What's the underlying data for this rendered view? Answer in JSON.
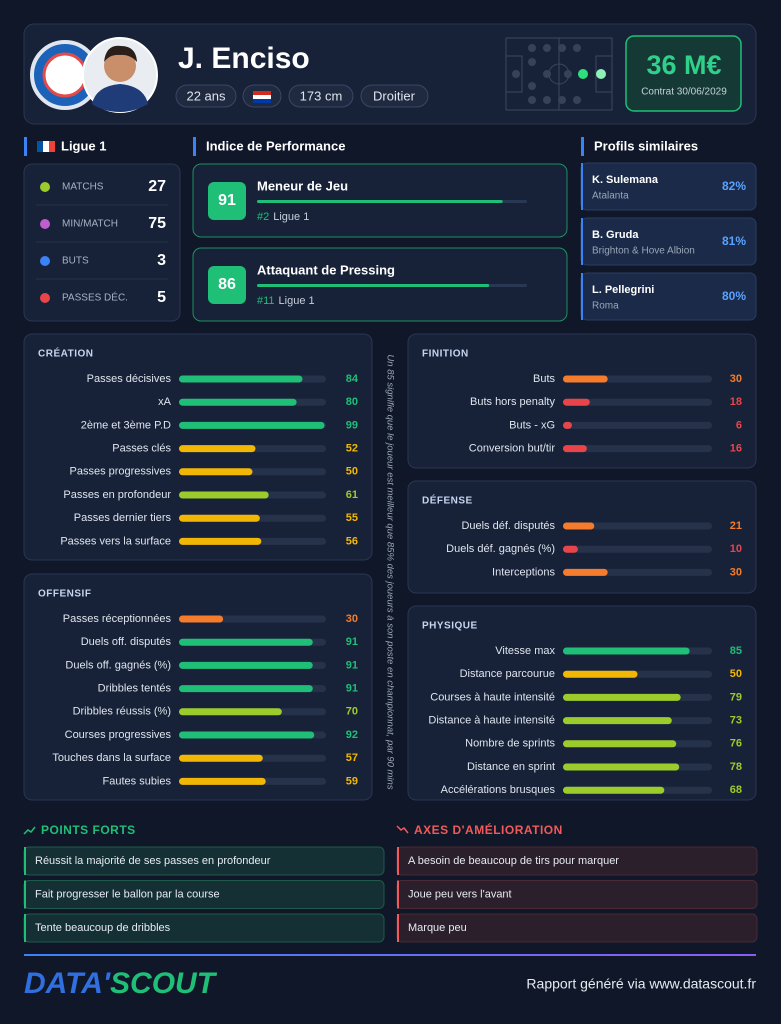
{
  "header": {
    "name": "J. Enciso",
    "age": "22 ans",
    "height": "173 cm",
    "foot": "Droitier",
    "value": "36 M€",
    "contract": "Contrat 30/06/2029"
  },
  "league": {
    "title": "Ligue 1",
    "stats": [
      {
        "label": "MATCHS",
        "value": 27
      },
      {
        "label": "MIN/MATCH",
        "value": 75
      },
      {
        "label": "BUTS",
        "value": 3
      },
      {
        "label": "PASSES DÉC.",
        "value": 5
      }
    ]
  },
  "performance": {
    "title": "Indice de Performance",
    "items": [
      {
        "score": 91,
        "role": "Meneur de Jeu",
        "rank": "#2",
        "league": "Ligue 1"
      },
      {
        "score": 86,
        "role": "Attaquant de Pressing",
        "rank": "#11",
        "league": "Ligue 1"
      }
    ]
  },
  "similar": {
    "title": "Profils similaires",
    "items": [
      {
        "name": "K. Sulemana",
        "club": "Atalanta",
        "match": "82%"
      },
      {
        "name": "B. Gruda",
        "club": "Brighton & Hove Albion",
        "match": "81%"
      },
      {
        "name": "L. Pellegrini",
        "club": "Roma",
        "match": "80%"
      }
    ]
  },
  "percentile_scale": {
    "xlim": [
      0,
      100
    ],
    "colors": [
      {
        "min": 80,
        "color": "#1fbf78"
      },
      {
        "min": 60,
        "color": "#9ccc2c"
      },
      {
        "min": 40,
        "color": "#f2b705"
      },
      {
        "min": 20,
        "color": "#f47c2c"
      },
      {
        "min": 0,
        "color": "#e8454a"
      }
    ]
  },
  "stat_sections": [
    {
      "title": "CRÉATION",
      "items": [
        {
          "label": "Passes décisives",
          "value": 84
        },
        {
          "label": "xA",
          "value": 80
        },
        {
          "label": "2ème et 3ème P.D",
          "value": 99
        },
        {
          "label": "Passes clés",
          "value": 52
        },
        {
          "label": "Passes progressives",
          "value": 50
        },
        {
          "label": "Passes en profondeur",
          "value": 61
        },
        {
          "label": "Passes dernier tiers",
          "value": 55
        },
        {
          "label": "Passes vers la surface",
          "value": 56
        }
      ]
    },
    {
      "title": "OFFENSIF",
      "items": [
        {
          "label": "Passes réceptionnées",
          "value": 30
        },
        {
          "label": "Duels off. disputés",
          "value": 91
        },
        {
          "label": "Duels off. gagnés (%)",
          "value": 91
        },
        {
          "label": "Dribbles tentés",
          "value": 91
        },
        {
          "label": "Dribbles réussis (%)",
          "value": 70
        },
        {
          "label": "Courses progressives",
          "value": 92
        },
        {
          "label": "Touches dans la surface",
          "value": 57
        },
        {
          "label": "Fautes subies",
          "value": 59
        }
      ]
    },
    {
      "title": "FINITION",
      "items": [
        {
          "label": "Buts",
          "value": 30
        },
        {
          "label": "Buts hors penalty",
          "value": 18
        },
        {
          "label": "Buts - xG",
          "value": 6
        },
        {
          "label": "Conversion but/tir",
          "value": 16
        }
      ]
    },
    {
      "title": "DÉFENSE",
      "items": [
        {
          "label": "Duels déf. disputés",
          "value": 21
        },
        {
          "label": "Duels déf. gagnés (%)",
          "value": 10
        },
        {
          "label": "Interceptions",
          "value": 30
        }
      ]
    },
    {
      "title": "PHYSIQUE",
      "items": [
        {
          "label": "Vitesse max",
          "value": 85
        },
        {
          "label": "Distance parcourue",
          "value": 50
        },
        {
          "label": "Courses à haute intensité",
          "value": 79
        },
        {
          "label": "Distance à haute intensité",
          "value": 73
        },
        {
          "label": "Nombre de sprints",
          "value": 76
        },
        {
          "label": "Distance en sprint",
          "value": 78
        },
        {
          "label": "Accélérations brusques",
          "value": 68
        }
      ]
    }
  ],
  "note": "Un 85 signifie que le joueur est meilleur que 85% des joueurs à son poste en championnat, par 90 mins",
  "strengths": {
    "title": "POINTS FORTS",
    "items": [
      "Réussit la majorité de ses passes en profondeur",
      "Fait progresser le ballon par la course",
      "Tente beaucoup de dribbles"
    ]
  },
  "weaknesses": {
    "title": "AXES D'AMÉLIORATION",
    "items": [
      "A besoin de beaucoup de tirs pour marquer",
      "Joue peu vers l'avant",
      "Marque peu"
    ]
  },
  "footer": {
    "logo_a": "DATA'",
    "logo_b": "SCOUT",
    "text": "Rapport généré via www.datascout.fr"
  }
}
